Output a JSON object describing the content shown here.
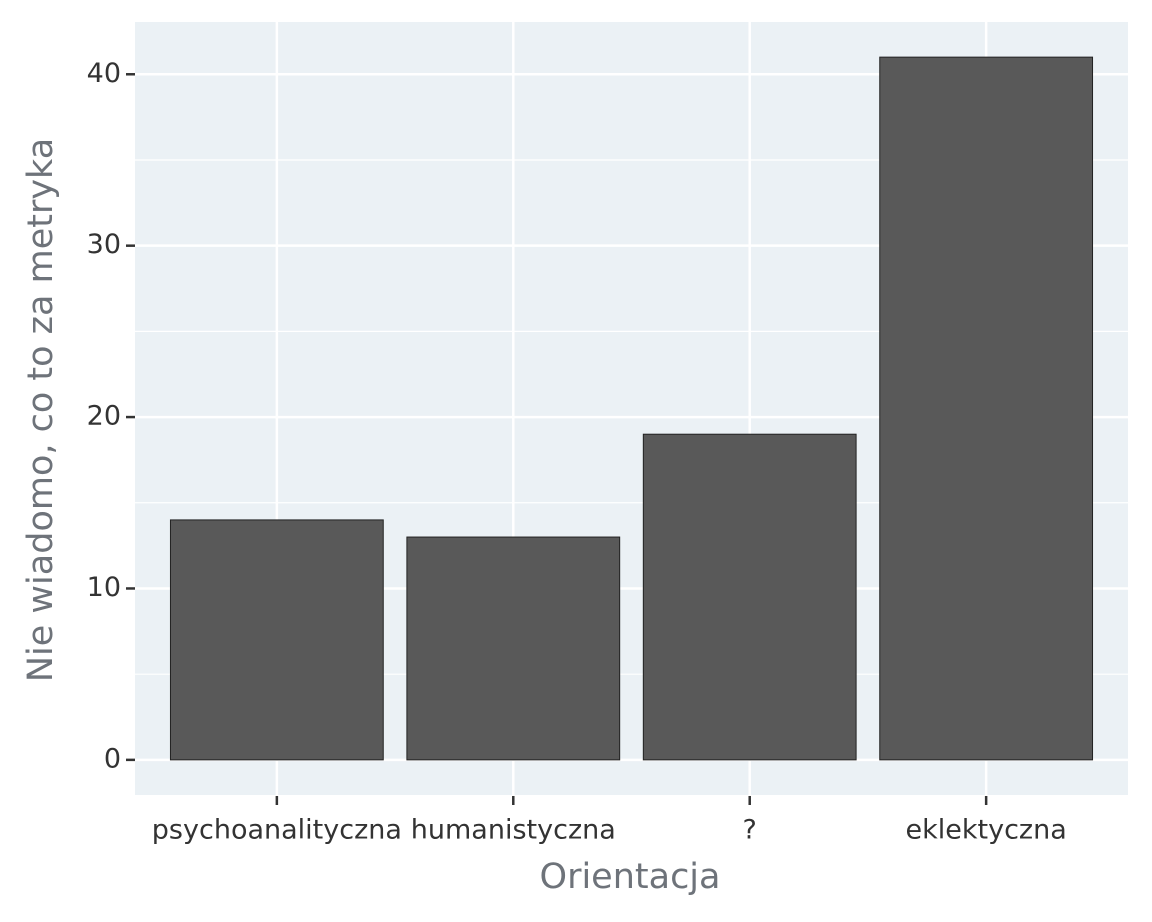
{
  "chart_data": {
    "type": "bar",
    "x_label": "Orientacja",
    "y_label": "Nie wiadomo, co to za metryka",
    "categories": [
      "psychoanalityczna",
      "humanistyczna",
      "?",
      "eklektyczna"
    ],
    "values": [
      14,
      13,
      19,
      41
    ],
    "color": "#595959",
    "ylim": [
      -2.05,
      43.05
    ],
    "yticks": [
      0,
      10,
      20,
      30,
      40
    ],
    "grid": true
  }
}
